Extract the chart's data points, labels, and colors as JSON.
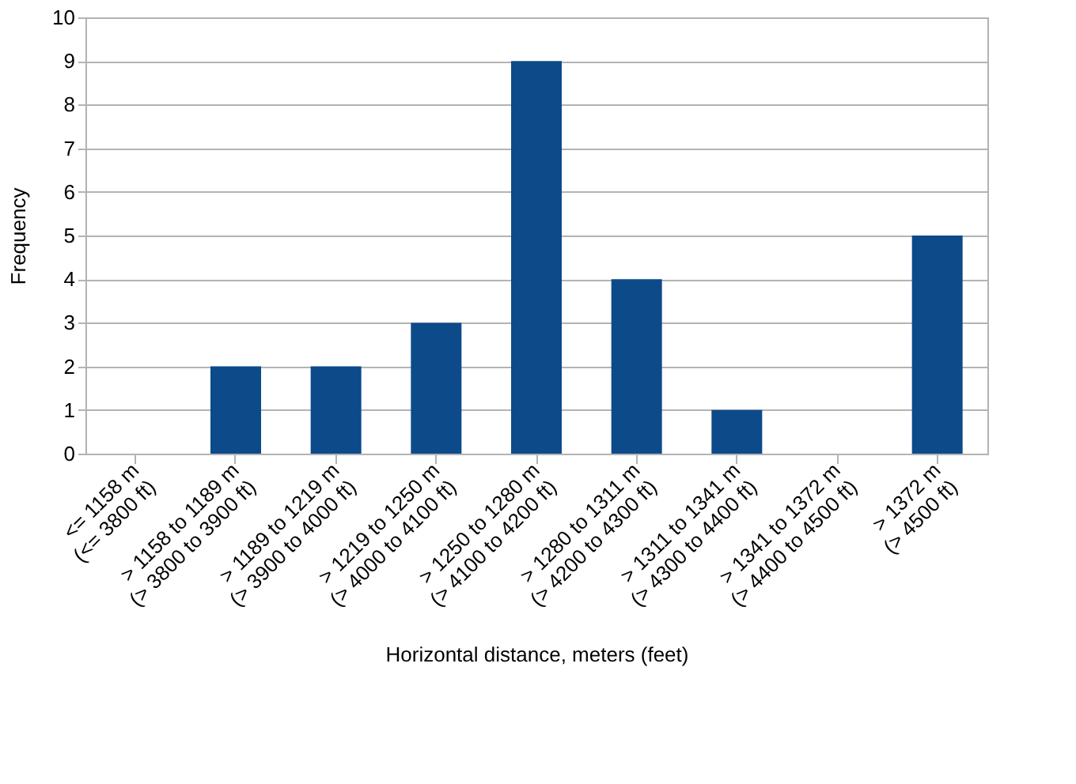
{
  "chart_data": {
    "type": "bar",
    "xlabel": "Horizontal distance, meters (feet)",
    "ylabel": "Frequency",
    "categories": [
      "<= 1158 m\n(<= 3800 ft)",
      "> 1158 to 1189 m\n(> 3800 to 3900 ft)",
      "> 1189 to 1219 m\n(> 3900 to 4000 ft)",
      "> 1219 to 1250 m\n(> 4000 to 4100 ft)",
      "> 1250 to 1280 m\n(> 4100 to 4200 ft)",
      "> 1280 to 1311 m\n(> 4200 to 4300 ft)",
      "> 1311 to 1341 m\n(> 4300 to 4400 ft)",
      "> 1341 to 1372 m\n(> 4400 to 4500 ft)",
      "> 1372 m\n(> 4500 ft)"
    ],
    "values": [
      0,
      2,
      2,
      3,
      9,
      4,
      1,
      0,
      5
    ],
    "color": "#0d4a8a",
    "ylim": [
      0,
      10
    ],
    "yticks": [
      0,
      1,
      2,
      3,
      4,
      5,
      6,
      7,
      8,
      9,
      10
    ],
    "grid": "y"
  }
}
